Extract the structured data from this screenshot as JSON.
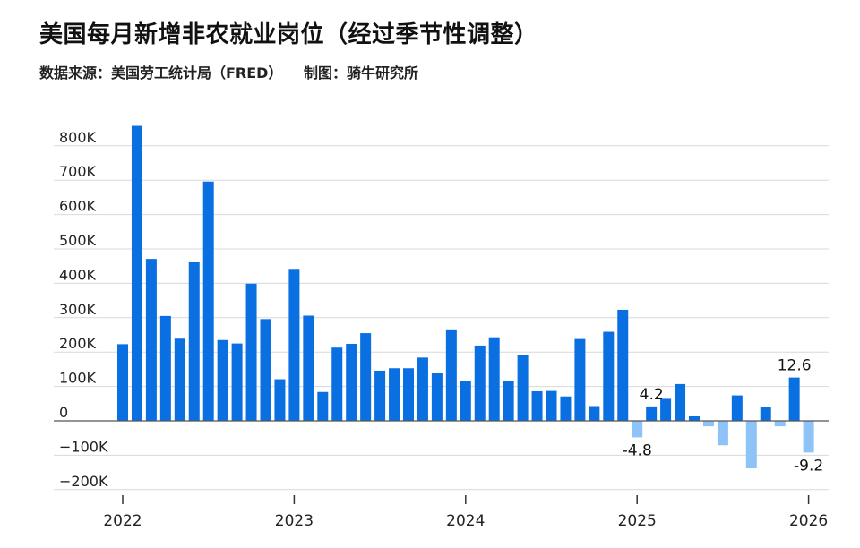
{
  "header": {
    "title": "美国每月新增非农就业岗位（经过季节性调整）",
    "source": "数据来源：美国劳工统计局（FRED）",
    "credit": "制图：骑牛研究所"
  },
  "colors": {
    "positive": "#0a6fe0",
    "negative": "#8ec3f7",
    "grid": "#d9d9d9",
    "zero": "#555555"
  },
  "chart_data": {
    "type": "bar",
    "ylim": [
      -200,
      850
    ],
    "yticks": [
      -200,
      -100,
      0,
      100,
      200,
      300,
      400,
      500,
      600,
      700,
      800
    ],
    "ytick_labels": [
      "−200K",
      "−100K",
      "0",
      "100K",
      "200K",
      "300K",
      "400K",
      "500K",
      "600K",
      "700K",
      "800K"
    ],
    "xtick_labels": [
      "2022",
      "2023",
      "2024",
      "2025",
      "2026"
    ],
    "xtick_index": [
      0,
      12,
      24,
      36,
      48
    ],
    "grid": true,
    "values": [
      223,
      858,
      471,
      305,
      239,
      461,
      696,
      235,
      225,
      399,
      296,
      121,
      442,
      306,
      84,
      213,
      224,
      255,
      146,
      153,
      153,
      184,
      138,
      266,
      116,
      219,
      243,
      116,
      192,
      86,
      87,
      71,
      238,
      43,
      259,
      323,
      -48,
      42,
      64,
      107,
      13,
      -16,
      -71,
      74,
      -138,
      39,
      -16,
      126,
      -92
    ],
    "annotations": [
      {
        "index": 36,
        "text": "-4.8"
      },
      {
        "index": 37,
        "text": "4.2"
      },
      {
        "index": 47,
        "text": "12.6"
      },
      {
        "index": 48,
        "text": "-9.2"
      }
    ]
  }
}
